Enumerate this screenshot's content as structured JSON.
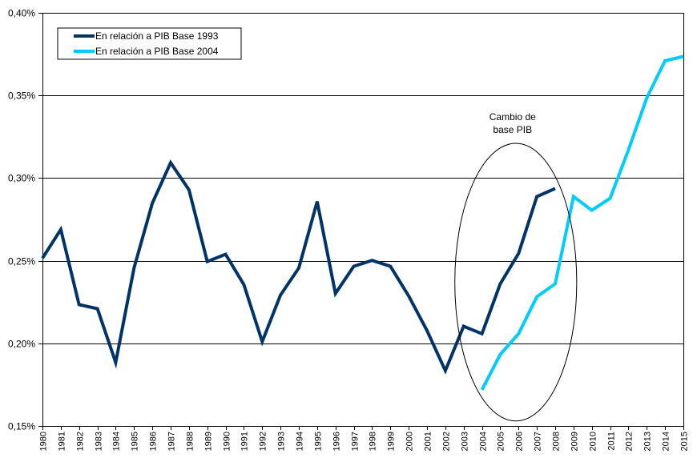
{
  "chart_data": {
    "type": "line",
    "title": "",
    "xlabel": "",
    "ylabel": "",
    "x": [
      "1980",
      "1981",
      "1982",
      "1983",
      "1984",
      "1985",
      "1986",
      "1987",
      "1988",
      "1989",
      "1990",
      "1991",
      "1992",
      "1993",
      "1994",
      "1995",
      "1996",
      "1997",
      "1998",
      "1999",
      "2000",
      "2001",
      "2002",
      "2003",
      "2004",
      "2005",
      "2006",
      "2007",
      "2008",
      "2009",
      "2010",
      "2011",
      "2012",
      "2013",
      "2014",
      "2015"
    ],
    "ylim": [
      0.15,
      0.4
    ],
    "yticks": [
      0.15,
      0.2,
      0.25,
      0.3,
      0.35,
      0.4
    ],
    "ytick_labels": [
      "0,15%",
      "0,20%",
      "0,25%",
      "0,30%",
      "0,35%",
      "0,40%"
    ],
    "grid": true,
    "legend_position": "top-left",
    "series": [
      {
        "name": "En relación a PIB Base 1993",
        "color": "#003366",
        "values": [
          0.2515,
          0.2689,
          0.2234,
          0.221,
          0.1884,
          0.2456,
          0.2848,
          0.3093,
          0.2929,
          0.2495,
          0.2539,
          0.2355,
          0.201,
          0.2292,
          0.2456,
          0.2858,
          0.2302,
          0.2466,
          0.2502,
          0.2466,
          0.2287,
          0.2077,
          0.1835,
          0.2103,
          0.2058,
          0.236,
          0.2544,
          0.2888,
          0.2937,
          null,
          null,
          null,
          null,
          null,
          null,
          null
        ]
      },
      {
        "name": "En relación a PIB Base 2004",
        "color": "#00CCFF",
        "values": [
          null,
          null,
          null,
          null,
          null,
          null,
          null,
          null,
          null,
          null,
          null,
          null,
          null,
          null,
          null,
          null,
          null,
          null,
          null,
          null,
          null,
          null,
          null,
          null,
          0.1719,
          0.1932,
          0.2058,
          0.2282,
          0.236,
          0.2888,
          0.2805,
          0.2878,
          0.317,
          0.3485,
          0.371,
          0.3736
        ]
      }
    ],
    "annotations": [
      {
        "text_lines": [
          "Cambio de",
          "base PIB"
        ],
        "shape": "ellipse",
        "x_range": [
          "2003",
          "2009"
        ],
        "y_range": [
          0.153,
          0.321
        ]
      }
    ]
  }
}
